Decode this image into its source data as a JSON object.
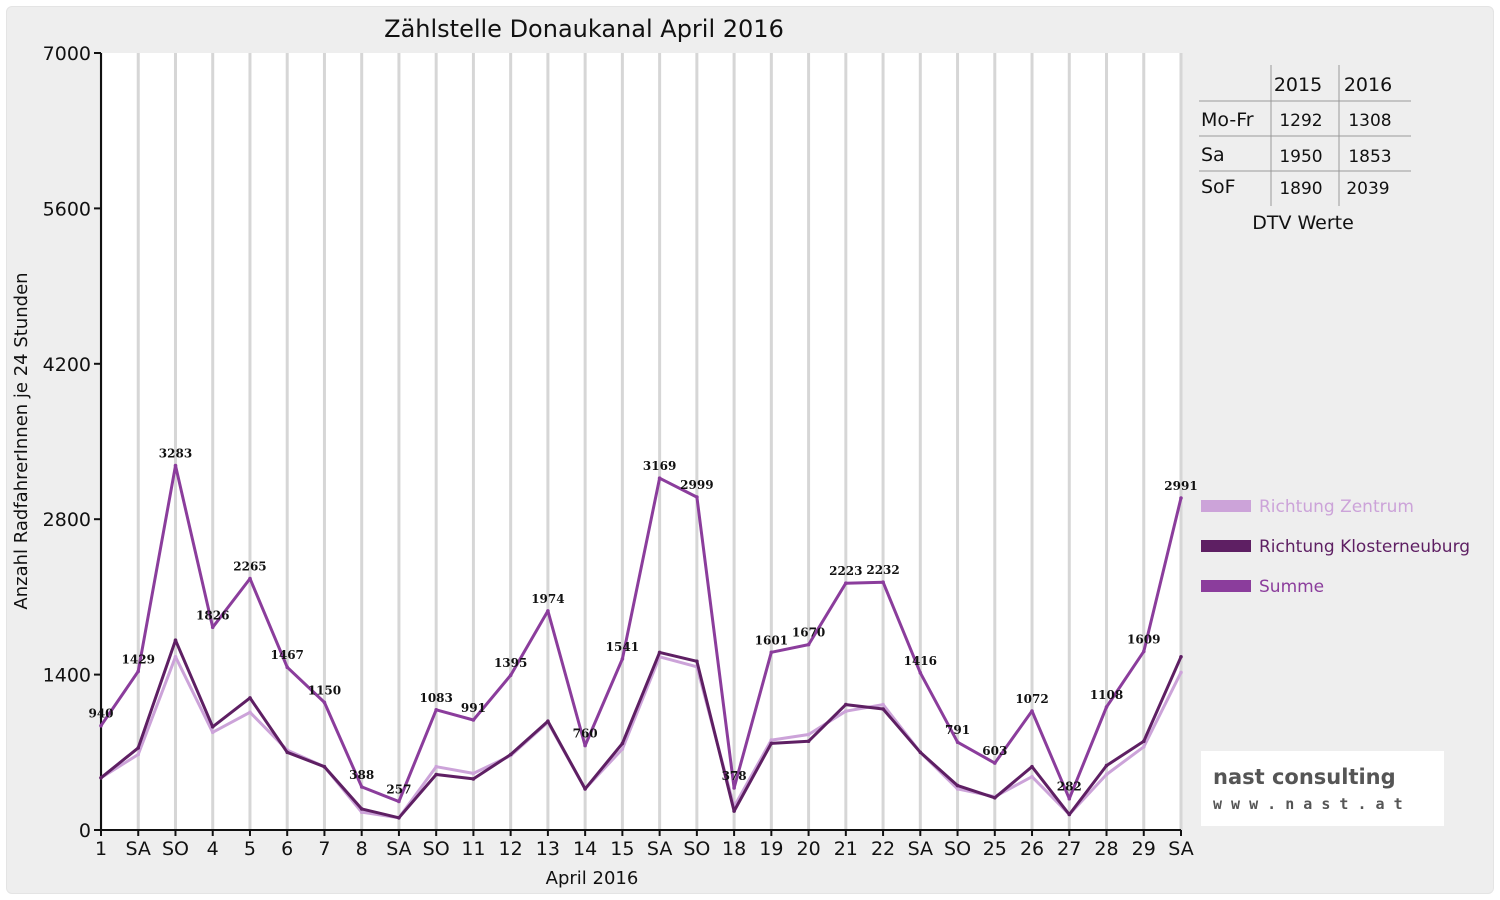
{
  "chart_data": {
    "type": "line",
    "title": "Zählstelle Donaukanal April 2016",
    "xlabel": "April 2016",
    "ylabel": "Anzahl RadfahrerInnen je 24 Stunden",
    "ylim": [
      0,
      7000
    ],
    "yticks": [
      0,
      1400,
      2800,
      4200,
      5600,
      7000
    ],
    "grid": "vertical",
    "legend_position": "right",
    "categories": [
      "1",
      "SA",
      "SO",
      "4",
      "5",
      "6",
      "7",
      "8",
      "SA",
      "SO",
      "11",
      "12",
      "13",
      "14",
      "15",
      "SA",
      "SO",
      "18",
      "19",
      "20",
      "21",
      "22",
      "SA",
      "SO",
      "25",
      "26",
      "27",
      "28",
      "29",
      "SA"
    ],
    "category_colors": [
      "#111111",
      "#111111",
      "#ee0000",
      "#111111",
      "#111111",
      "#111111",
      "#111111",
      "#111111",
      "#111111",
      "#ee0000",
      "#111111",
      "#111111",
      "#111111",
      "#111111",
      "#111111",
      "#111111",
      "#ee0000",
      "#111111",
      "#111111",
      "#111111",
      "#111111",
      "#111111",
      "#111111",
      "#ee0000",
      "#111111",
      "#111111",
      "#111111",
      "#111111",
      "#111111",
      "#111111"
    ],
    "series": [
      {
        "name": "Richtung Zentrum",
        "color": "#cca3d9",
        "values": [
          470,
          680,
          1560,
          880,
          1060,
          720,
          570,
          160,
          110,
          570,
          510,
          670,
          970,
          370,
          730,
          1560,
          1470,
          210,
          810,
          860,
          1070,
          1130,
          700,
          370,
          300,
          480,
          140,
          500,
          750,
          1420
        ]
      },
      {
        "name": "Richtung Klosterneuburg",
        "color": "#5e1f63",
        "values": [
          470,
          740,
          1710,
          930,
          1190,
          700,
          570,
          190,
          110,
          500,
          460,
          680,
          980,
          370,
          780,
          1600,
          1520,
          170,
          780,
          800,
          1130,
          1090,
          700,
          400,
          290,
          570,
          140,
          580,
          800,
          1560
        ]
      },
      {
        "name": "Summe",
        "color": "#8b3d9c",
        "values": [
          940,
          1429,
          3283,
          1826,
          2265,
          1467,
          1150,
          388,
          257,
          1083,
          991,
          1395,
          1974,
          760,
          1541,
          3169,
          2999,
          378,
          1601,
          1670,
          2223,
          2232,
          1416,
          791,
          603,
          1072,
          282,
          1108,
          1609,
          2991
        ]
      }
    ],
    "data_labels": [
      "940",
      "1429",
      "3283",
      "1826",
      "2265",
      "1467",
      "1150",
      "388",
      "257",
      "1083",
      "991",
      "1395",
      "1974",
      "760",
      "1541",
      "3169",
      "2999",
      "378",
      "1601",
      "1670",
      "2223",
      "2232",
      "1416",
      "791",
      "603",
      "1072",
      "282",
      "1108",
      "1609",
      "2991"
    ]
  },
  "dtv_table": {
    "caption": "DTV Werte",
    "headers": [
      "2015",
      "2016"
    ],
    "rows": [
      {
        "label": "Mo-Fr",
        "v2015": "1292",
        "v2016": "1308"
      },
      {
        "label": "Sa",
        "v2015": "1950",
        "v2016": "1853"
      },
      {
        "label": "SoF",
        "v2015": "1890",
        "v2016": "2039"
      }
    ]
  },
  "logo": {
    "line1": "nast consulting",
    "line2": "w w w . n a s t . a t",
    "color": "#c01c1c"
  }
}
